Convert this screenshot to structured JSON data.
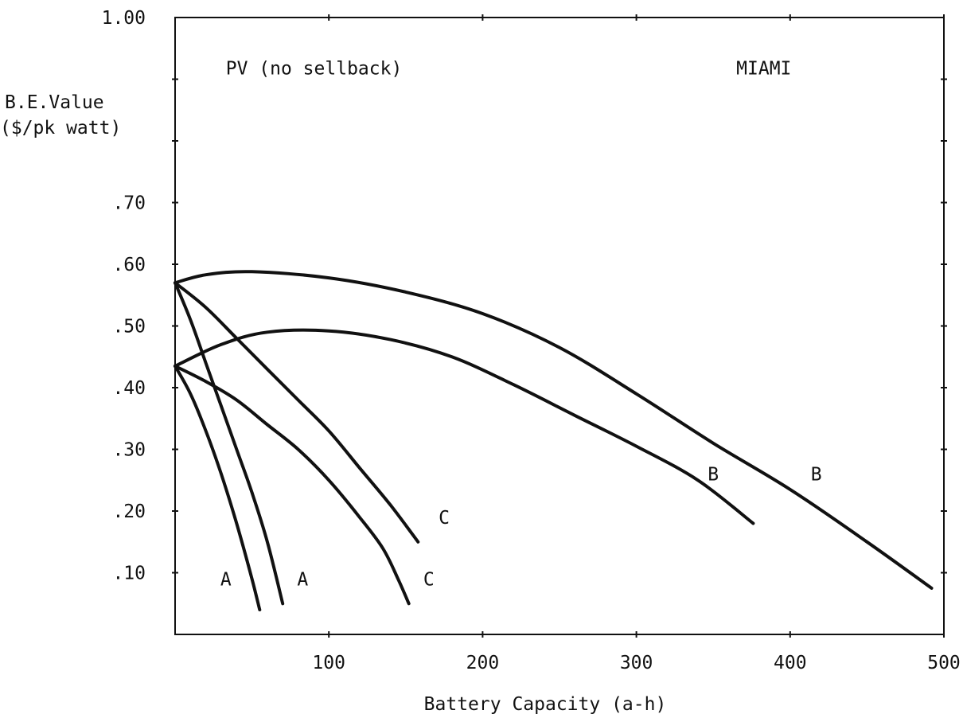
{
  "chart_data": {
    "type": "line",
    "xlabel": "Battery Capacity (a-h)",
    "ylabel_line1": "B.E.Value",
    "ylabel_line2": "($/pk watt)",
    "xlim": [
      0,
      500
    ],
    "ylim": [
      0,
      1.0
    ],
    "x_ticks": [
      {
        "value": 100,
        "label": "100"
      },
      {
        "value": 200,
        "label": "200"
      },
      {
        "value": 300,
        "label": "300"
      },
      {
        "value": 400,
        "label": "400"
      },
      {
        "value": 500,
        "label": "500"
      }
    ],
    "y_ticks": [
      {
        "value": 0.1,
        "label": ".10"
      },
      {
        "value": 0.2,
        "label": ".20"
      },
      {
        "value": 0.3,
        "label": ".30"
      },
      {
        "value": 0.4,
        "label": ".40"
      },
      {
        "value": 0.5,
        "label": ".50"
      },
      {
        "value": 0.6,
        "label": ".60"
      },
      {
        "value": 0.7,
        "label": ".70"
      },
      {
        "value": 1.0,
        "label": "1.00"
      }
    ],
    "y_tick_marks": [
      0.1,
      0.2,
      0.3,
      0.4,
      0.5,
      0.6,
      0.7,
      0.8,
      0.9
    ],
    "grid": false,
    "annotations": [
      {
        "text": "PV (no sellback)",
        "x": 33,
        "y": 0.918
      },
      {
        "text": "MIAMI",
        "x": 365,
        "y": 0.918
      }
    ],
    "series": [
      {
        "label": "A",
        "x": [
          0,
          10,
          20,
          30,
          40,
          50,
          55
        ],
        "y": [
          0.435,
          0.39,
          0.33,
          0.26,
          0.18,
          0.09,
          0.04
        ],
        "label_at": [
          33,
          0.09
        ]
      },
      {
        "label": "A",
        "x": [
          0,
          10,
          20,
          30,
          40,
          50,
          60,
          70
        ],
        "y": [
          0.57,
          0.51,
          0.44,
          0.37,
          0.3,
          0.23,
          0.15,
          0.05
        ],
        "label_at": [
          83,
          0.09
        ]
      },
      {
        "label": "C",
        "x": [
          0,
          20,
          40,
          60,
          80,
          100,
          120,
          135,
          145,
          152
        ],
        "y": [
          0.435,
          0.41,
          0.38,
          0.34,
          0.3,
          0.25,
          0.19,
          0.14,
          0.09,
          0.05
        ],
        "label_at": [
          165,
          0.09
        ]
      },
      {
        "label": "C",
        "x": [
          0,
          20,
          40,
          60,
          80,
          100,
          120,
          140,
          158
        ],
        "y": [
          0.57,
          0.53,
          0.48,
          0.43,
          0.38,
          0.33,
          0.27,
          0.21,
          0.15
        ],
        "label_at": [
          175,
          0.19
        ]
      },
      {
        "label": "B",
        "x": [
          0,
          30,
          60,
          100,
          140,
          180,
          220,
          260,
          300,
          340,
          376
        ],
        "y": [
          0.435,
          0.47,
          0.49,
          0.492,
          0.478,
          0.45,
          0.405,
          0.355,
          0.305,
          0.25,
          0.18
        ],
        "label_at": [
          350,
          0.26
        ]
      },
      {
        "label": "B",
        "x": [
          0,
          20,
          50,
          100,
          150,
          200,
          250,
          300,
          350,
          400,
          450,
          492
        ],
        "y": [
          0.57,
          0.583,
          0.588,
          0.578,
          0.555,
          0.52,
          0.465,
          0.39,
          0.31,
          0.235,
          0.15,
          0.075
        ],
        "label_at": [
          417,
          0.26
        ]
      }
    ]
  }
}
